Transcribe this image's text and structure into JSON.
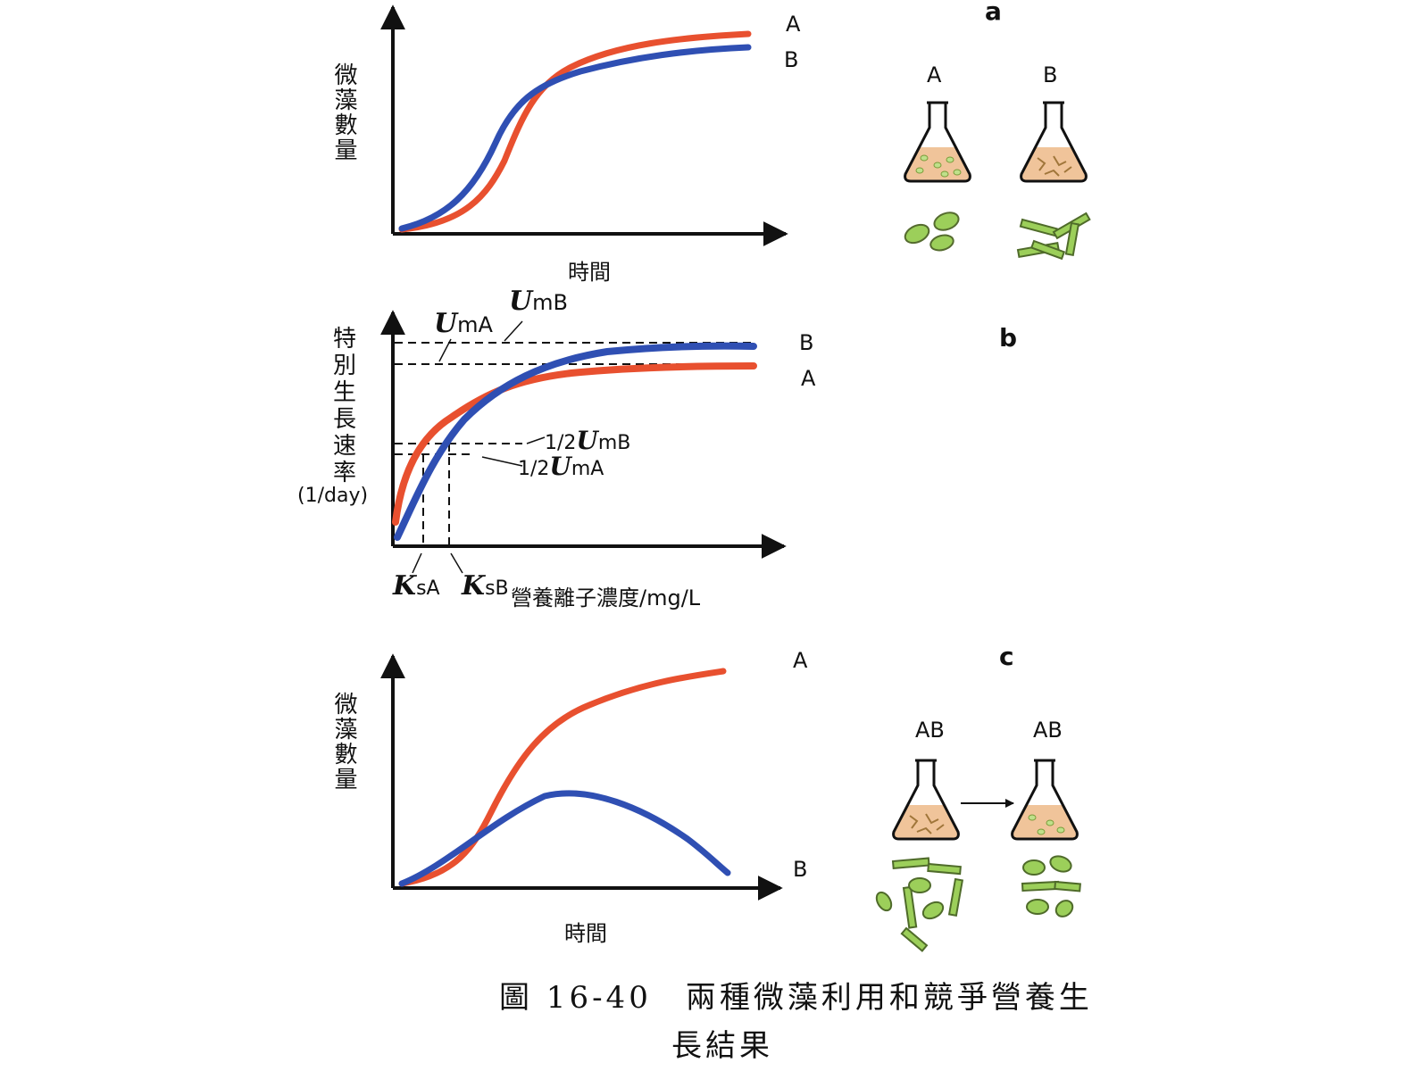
{
  "colors": {
    "series_a": "#e8502f",
    "series_b": "#2f4fb3",
    "axis": "#111111",
    "flask_fill": "#f0c49a",
    "cell_green": "#9ccf5a"
  },
  "panel_a": {
    "letter": "a",
    "y_label": "微藻數量",
    "x_label": "時間",
    "series_labels": {
      "a": "A",
      "b": "B"
    },
    "flask_labels": {
      "a": "A",
      "b": "B"
    }
  },
  "panel_b": {
    "letter": "b",
    "y_label_chars": [
      "特",
      "別",
      "生",
      "長",
      "速",
      "率"
    ],
    "y_unit": "(1/day)",
    "x_label": "營養離子濃度/mg/L",
    "series_labels": {
      "a": "A",
      "b": "B"
    },
    "um_a": {
      "sym": "U",
      "sub": "mA"
    },
    "um_b": {
      "sym": "U",
      "sub": "mB"
    },
    "half_um_b": {
      "prefix": "1/2",
      "sym": "U",
      "sub": "mB"
    },
    "half_um_a": {
      "prefix": "1/2",
      "sym": "U",
      "sub": "mA"
    },
    "ks_a": {
      "sym": "K",
      "sub": "sA"
    },
    "ks_b": {
      "sym": "K",
      "sub": "sB"
    }
  },
  "panel_c": {
    "letter": "c",
    "y_label": "微藻數量",
    "x_label": "時間",
    "series_labels": {
      "a": "A",
      "b": "B"
    },
    "flask_labels": {
      "left": "AB",
      "right": "AB"
    }
  },
  "caption": {
    "line1": "圖 16-40　兩種微藻利用和競爭營養生",
    "line2": "長結果"
  }
}
